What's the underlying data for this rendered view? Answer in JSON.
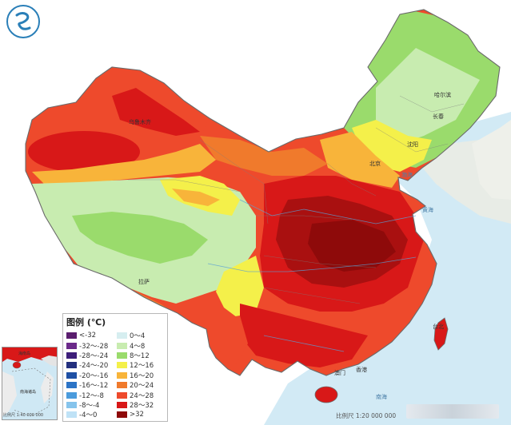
{
  "legend": {
    "title": "图例 (℃)",
    "items": [
      {
        "label": "<-32",
        "color": "#5a1e6e"
      },
      {
        "label": "-32～-28",
        "color": "#6b2a8a"
      },
      {
        "label": "-28～-24",
        "color": "#3e1f7a"
      },
      {
        "label": "-24～-20",
        "color": "#23307e"
      },
      {
        "label": "-20～-16",
        "color": "#1f50a4"
      },
      {
        "label": "-16～-12",
        "color": "#2c74c6"
      },
      {
        "label": "-12～-8",
        "color": "#4b9bdc"
      },
      {
        "label": "-8～-4",
        "color": "#86c4ec"
      },
      {
        "label": "-4～0",
        "color": "#bfe2f6"
      },
      {
        "label": "0～4",
        "color": "#d6eef0"
      },
      {
        "label": "4～8",
        "color": "#c8ecb0"
      },
      {
        "label": "8～12",
        "color": "#9adb6c"
      },
      {
        "label": "12～16",
        "color": "#f4f04a"
      },
      {
        "label": "16～20",
        "color": "#f8b43a"
      },
      {
        "label": "20～24",
        "color": "#f07a2c"
      },
      {
        "label": "24～28",
        "color": "#ee4a2c"
      },
      {
        "label": "28～32",
        "color": "#d81818"
      },
      {
        "label": ">32",
        "color": "#8e0a0a"
      }
    ]
  },
  "scale_label": "比例尺 1:20 000 000",
  "inset": {
    "labels": [
      "海南岛",
      "南海诸岛"
    ],
    "caption": "比例尺 1:40 000 000"
  },
  "cities": [
    {
      "name": "哈尔滨"
    },
    {
      "name": "长春"
    },
    {
      "name": "沈阳"
    },
    {
      "name": "北京"
    },
    {
      "name": "乌鲁木齐"
    },
    {
      "name": "拉萨"
    },
    {
      "name": "台北"
    },
    {
      "name": "香港"
    },
    {
      "name": "澳门"
    },
    {
      "name": "南海"
    },
    {
      "name": "黄海"
    },
    {
      "name": "渤海"
    }
  ],
  "colors": {
    "sea": "#d2eaf5",
    "sea_deep": "#b8dcee",
    "land_outside": "#f4f4f4"
  }
}
